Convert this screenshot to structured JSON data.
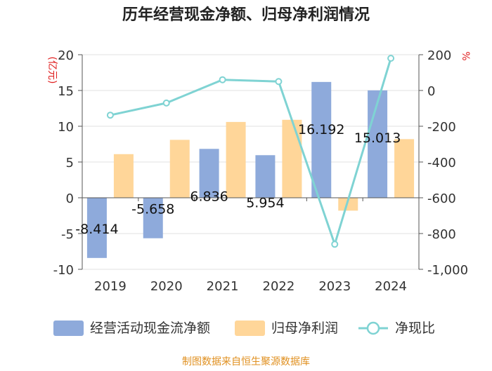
{
  "chart_data": {
    "type": "bar+line",
    "title": "历年经营现金净额、归母净利润情况",
    "categories": [
      "2019",
      "2020",
      "2021",
      "2022",
      "2023",
      "2024"
    ],
    "series": [
      {
        "name": "经营活动现金流净额",
        "type": "bar",
        "axis": "left",
        "values": [
          -8.414,
          -5.658,
          6.836,
          5.954,
          16.192,
          15.013
        ],
        "labels": [
          "-8.414",
          "-5.658",
          "6.836",
          "5.954",
          "16.192",
          "15.013"
        ]
      },
      {
        "name": "归母净利润",
        "type": "bar",
        "axis": "left",
        "values": [
          6.1,
          8.1,
          10.6,
          10.9,
          -1.8,
          8.2
        ]
      },
      {
        "name": "净现比",
        "type": "line",
        "axis": "right",
        "values": [
          -138,
          -70,
          60,
          50,
          -860,
          180
        ]
      }
    ],
    "left_axis": {
      "label": "(亿元)",
      "min": -10,
      "max": 20,
      "ticks": [
        "-10",
        "-5",
        "0",
        "5",
        "10",
        "15",
        "20"
      ]
    },
    "right_axis": {
      "label": "%",
      "min": -1000,
      "max": 200,
      "ticks": [
        "-1,000",
        "-800",
        "-600",
        "-400",
        "-200",
        "0",
        "200"
      ]
    },
    "source": "制图数据来自恒生聚源数据库",
    "colors": {
      "cash_flow": "#8eaadb",
      "net_profit": "#ffd699",
      "ratio": "#7fd3d3",
      "unit_red": "#e02020",
      "source_orange": "#e09020"
    }
  }
}
